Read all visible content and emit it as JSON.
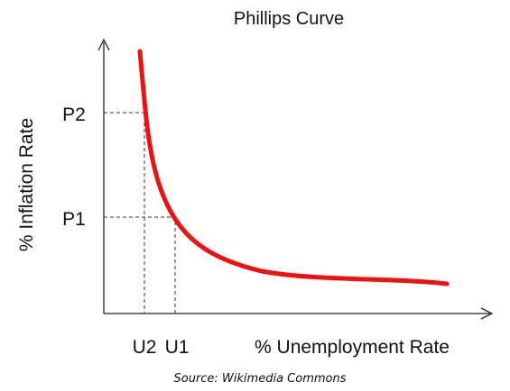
{
  "title": "Phillips Curve",
  "y_axis": {
    "label": "% Inflation Rate",
    "points": [
      "P2",
      "P1"
    ]
  },
  "x_axis": {
    "label": "% Unemployment Rate",
    "points": [
      "U2",
      "U1"
    ]
  },
  "source": "Source: Wikimedia Commons"
}
